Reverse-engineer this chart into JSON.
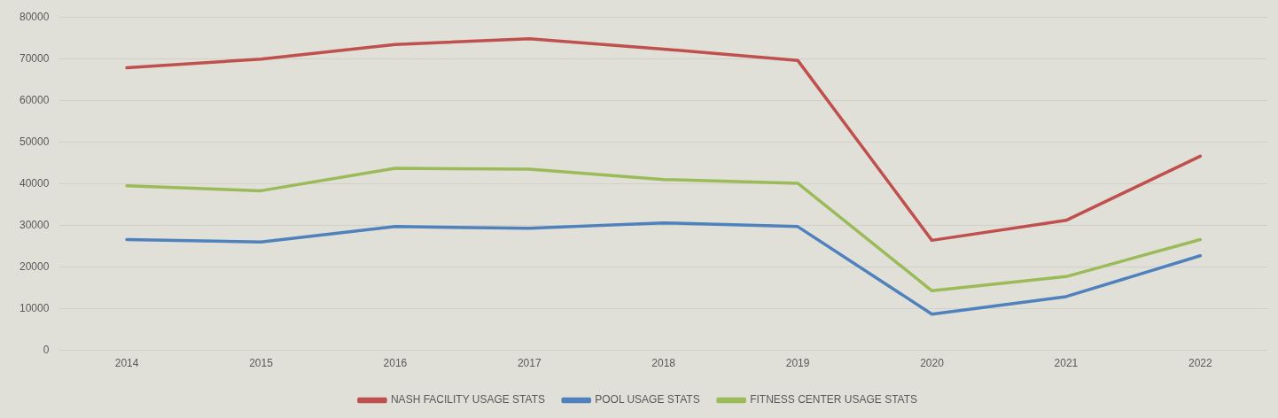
{
  "chart_data": {
    "type": "line",
    "categories": [
      "2014",
      "2015",
      "2016",
      "2017",
      "2018",
      "2019",
      "2020",
      "2021",
      "2022"
    ],
    "series": [
      {
        "name": "NASH FACILITY USAGE STATS",
        "color": "#c0504d",
        "values": [
          67800,
          69900,
          73400,
          74800,
          72300,
          69600,
          26400,
          31200,
          46600
        ]
      },
      {
        "name": "POOL USAGE STATS",
        "color": "#4f81bd",
        "values": [
          26600,
          26000,
          29700,
          29300,
          30600,
          29700,
          8700,
          12900,
          22700
        ]
      },
      {
        "name": "FITNESS CENTER USAGE STATS",
        "color": "#9bbb59",
        "values": [
          39500,
          38300,
          43700,
          43500,
          41000,
          40100,
          14300,
          17700,
          26600
        ]
      }
    ],
    "ylim": [
      0,
      80000
    ],
    "yticks": [
      0,
      10000,
      20000,
      30000,
      40000,
      50000,
      60000,
      70000,
      80000
    ],
    "grid": "y",
    "legend": "bottom",
    "marker": "none",
    "line_style": "solid"
  }
}
